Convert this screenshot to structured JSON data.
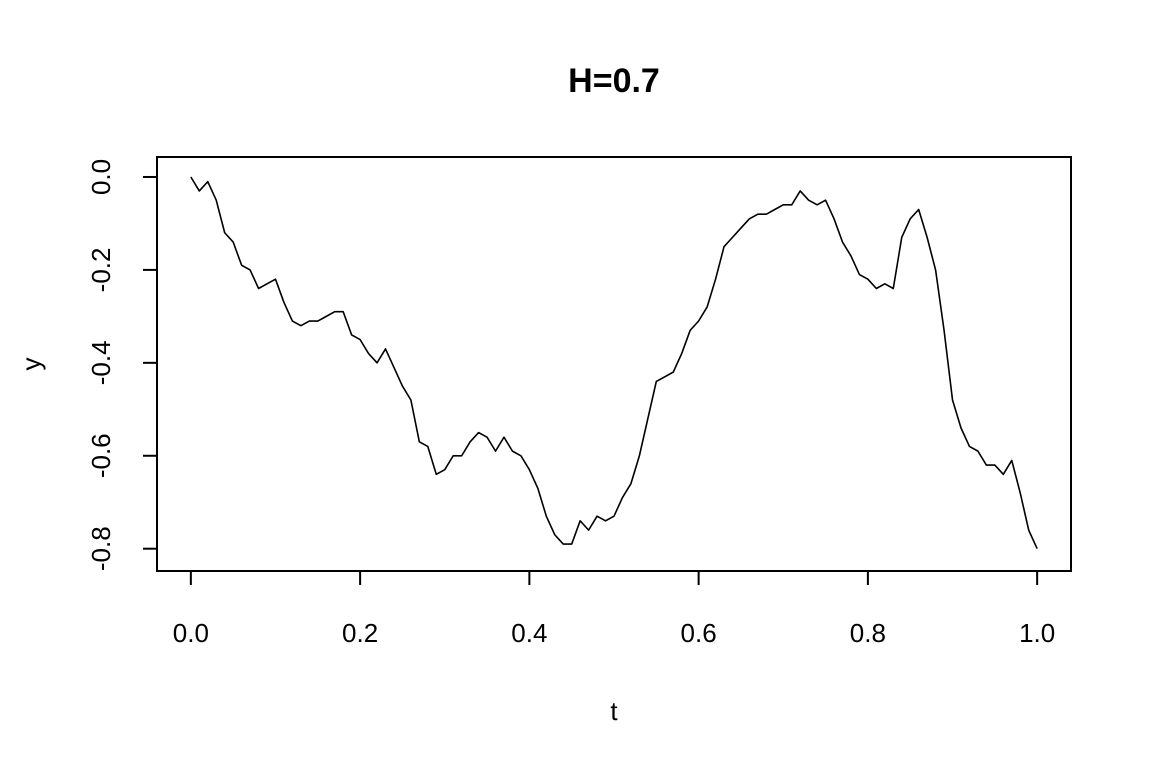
{
  "chart_data": {
    "type": "line",
    "title": "H=0.7",
    "x_label": "t",
    "y_label": "y",
    "color": "#000000",
    "x": [
      0,
      0.01,
      0.02,
      0.03,
      0.04,
      0.05,
      0.06,
      0.07,
      0.08,
      0.09,
      0.1,
      0.11,
      0.12,
      0.13,
      0.14,
      0.15,
      0.16,
      0.17,
      0.18,
      0.19,
      0.2,
      0.21,
      0.22,
      0.23,
      0.24,
      0.25,
      0.26,
      0.27,
      0.28,
      0.29,
      0.3,
      0.31,
      0.32,
      0.33,
      0.34,
      0.35,
      0.36,
      0.37,
      0.38,
      0.39,
      0.4,
      0.41,
      0.42,
      0.43,
      0.44,
      0.45,
      0.46,
      0.47,
      0.48,
      0.49,
      0.5,
      0.51,
      0.52,
      0.53,
      0.54,
      0.55,
      0.56,
      0.57,
      0.58,
      0.59,
      0.6,
      0.61,
      0.62,
      0.63,
      0.64,
      0.65,
      0.66,
      0.67,
      0.68,
      0.69,
      0.7,
      0.71,
      0.72,
      0.73,
      0.74,
      0.75,
      0.76,
      0.77,
      0.78,
      0.79,
      0.8,
      0.81,
      0.82,
      0.83,
      0.84,
      0.85,
      0.86,
      0.87,
      0.88,
      0.89,
      0.9,
      0.91,
      0.92,
      0.93,
      0.94,
      0.95,
      0.96,
      0.97,
      0.98,
      0.99,
      1.0
    ],
    "values": [
      0,
      -0.03,
      -0.01,
      -0.05,
      -0.12,
      -0.14,
      -0.19,
      -0.2,
      -0.24,
      -0.23,
      -0.22,
      -0.27,
      -0.31,
      -0.32,
      -0.31,
      -0.31,
      -0.3,
      -0.29,
      -0.29,
      -0.34,
      -0.35,
      -0.38,
      -0.4,
      -0.37,
      -0.41,
      -0.45,
      -0.48,
      -0.57,
      -0.58,
      -0.64,
      -0.63,
      -0.6,
      -0.6,
      -0.57,
      -0.55,
      -0.56,
      -0.59,
      -0.56,
      -0.59,
      -0.6,
      -0.63,
      -0.67,
      -0.73,
      -0.77,
      -0.79,
      -0.79,
      -0.74,
      -0.76,
      -0.73,
      -0.74,
      -0.73,
      -0.69,
      -0.66,
      -0.6,
      -0.52,
      -0.44,
      -0.43,
      -0.42,
      -0.38,
      -0.33,
      -0.31,
      -0.28,
      -0.22,
      -0.15,
      -0.13,
      -0.11,
      -0.09,
      -0.08,
      -0.08,
      -0.07,
      -0.06,
      -0.06,
      -0.03,
      -0.05,
      -0.06,
      -0.05,
      -0.09,
      -0.14,
      -0.17,
      -0.21,
      -0.22,
      -0.24,
      -0.23,
      -0.24,
      -0.13,
      -0.09,
      -0.07,
      -0.13,
      -0.2,
      -0.33,
      -0.48,
      -0.54,
      -0.58,
      -0.59,
      -0.62,
      -0.62,
      -0.64,
      -0.61,
      -0.68,
      -0.76,
      -0.8
    ],
    "xlim": [
      -0.04,
      1.04
    ],
    "ylim": [
      -0.848,
      0.043
    ],
    "xticks": [
      {
        "value": 0,
        "label": "0.0"
      },
      0.2,
      0.4,
      0.6,
      0.8,
      {
        "value": 1,
        "label": "1.0"
      }
    ],
    "yticks": [
      {
        "value": 0,
        "label": "0.0"
      },
      -0.2,
      -0.4,
      -0.6,
      -0.8
    ]
  }
}
